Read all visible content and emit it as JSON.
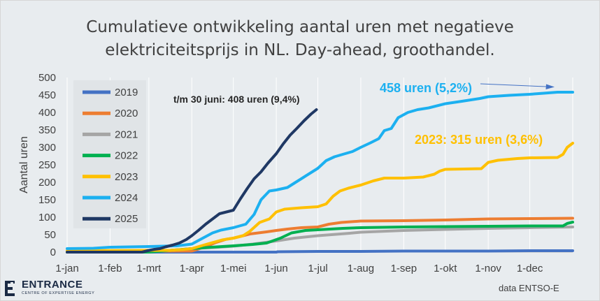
{
  "chart_data": {
    "type": "line",
    "title": "Cumulatieve ontwikkeling aantal uren met negatieve elektriciteitsprijs in NL. Day-ahead, groothandel.",
    "title_lines": [
      "Cumulatieve ontwikkeling aantal uren met negatieve",
      "elektriciteitsprijs in NL. Day-ahead, groothandel."
    ],
    "xlabel": "",
    "ylabel": "Aantal uren",
    "ylim": [
      0,
      500
    ],
    "yticks": [
      0,
      50,
      100,
      150,
      200,
      250,
      300,
      350,
      400,
      450,
      500
    ],
    "x_unit": "day of year",
    "xlim": [
      1,
      366
    ],
    "x_ticks": [
      {
        "label": "1-jan",
        "day": 1
      },
      {
        "label": "1-feb",
        "day": 32
      },
      {
        "label": "1-mrt",
        "day": 60
      },
      {
        "label": "1-apr",
        "day": 91
      },
      {
        "label": "1-mei",
        "day": 121
      },
      {
        "label": "1-jun",
        "day": 152
      },
      {
        "label": "1-jul",
        "day": 182
      },
      {
        "label": "1-aug",
        "day": 213
      },
      {
        "label": "1-sep",
        "day": 244
      },
      {
        "label": "1-okt",
        "day": 274
      },
      {
        "label": "1-nov",
        "day": 305
      },
      {
        "label": "1-dec",
        "day": 335
      }
    ],
    "grid": "vertical",
    "legend_position": "top-left",
    "series": [
      {
        "name": "2019",
        "color": "#4472c4",
        "points": [
          [
            1,
            0
          ],
          [
            152,
            0
          ],
          [
            153,
            1
          ],
          [
            182,
            2
          ],
          [
            213,
            2
          ],
          [
            244,
            3
          ],
          [
            305,
            3
          ],
          [
            335,
            4
          ],
          [
            366,
            4
          ]
        ]
      },
      {
        "name": "2020",
        "color": "#ed7d31",
        "points": [
          [
            1,
            2
          ],
          [
            91,
            3
          ],
          [
            100,
            14
          ],
          [
            108,
            27
          ],
          [
            116,
            37
          ],
          [
            121,
            40
          ],
          [
            133,
            52
          ],
          [
            145,
            58
          ],
          [
            152,
            62
          ],
          [
            160,
            66
          ],
          [
            170,
            70
          ],
          [
            182,
            72
          ],
          [
            190,
            80
          ],
          [
            199,
            85
          ],
          [
            213,
            89
          ],
          [
            244,
            90
          ],
          [
            274,
            92
          ],
          [
            305,
            95
          ],
          [
            335,
            96
          ],
          [
            366,
            97
          ]
        ]
      },
      {
        "name": "2021",
        "color": "#a5a5a5",
        "points": [
          [
            1,
            0
          ],
          [
            60,
            2
          ],
          [
            80,
            6
          ],
          [
            91,
            10
          ],
          [
            110,
            14
          ],
          [
            121,
            17
          ],
          [
            135,
            23
          ],
          [
            152,
            32
          ],
          [
            165,
            40
          ],
          [
            182,
            47
          ],
          [
            205,
            54
          ],
          [
            213,
            57
          ],
          [
            244,
            62
          ],
          [
            274,
            65
          ],
          [
            305,
            68
          ],
          [
            335,
            70
          ],
          [
            366,
            72
          ]
        ]
      },
      {
        "name": "2022",
        "color": "#00b050",
        "points": [
          [
            1,
            0
          ],
          [
            60,
            0
          ],
          [
            72,
            4
          ],
          [
            91,
            10
          ],
          [
            105,
            14
          ],
          [
            121,
            18
          ],
          [
            135,
            22
          ],
          [
            145,
            26
          ],
          [
            155,
            40
          ],
          [
            163,
            55
          ],
          [
            173,
            62
          ],
          [
            182,
            64
          ],
          [
            200,
            68
          ],
          [
            213,
            70
          ],
          [
            244,
            72
          ],
          [
            274,
            73
          ],
          [
            305,
            74
          ],
          [
            335,
            75
          ],
          [
            359,
            75
          ],
          [
            362,
            82
          ],
          [
            366,
            86
          ]
        ]
      },
      {
        "name": "2023",
        "color": "#ffc000",
        "points": [
          [
            1,
            4
          ],
          [
            60,
            5
          ],
          [
            75,
            5
          ],
          [
            86,
            8
          ],
          [
            91,
            10
          ],
          [
            103,
            24
          ],
          [
            113,
            35
          ],
          [
            121,
            40
          ],
          [
            128,
            47
          ],
          [
            133,
            60
          ],
          [
            140,
            85
          ],
          [
            147,
            95
          ],
          [
            152,
            115
          ],
          [
            158,
            123
          ],
          [
            170,
            127
          ],
          [
            182,
            130
          ],
          [
            188,
            138
          ],
          [
            193,
            160
          ],
          [
            198,
            175
          ],
          [
            204,
            183
          ],
          [
            213,
            192
          ],
          [
            222,
            204
          ],
          [
            226,
            208
          ],
          [
            230,
            212
          ],
          [
            244,
            212
          ],
          [
            258,
            215
          ],
          [
            266,
            223
          ],
          [
            270,
            232
          ],
          [
            274,
            237
          ],
          [
            300,
            239
          ],
          [
            305,
            257
          ],
          [
            312,
            263
          ],
          [
            326,
            268
          ],
          [
            335,
            270
          ],
          [
            355,
            271
          ],
          [
            359,
            280
          ],
          [
            362,
            300
          ],
          [
            366,
            312
          ]
        ]
      },
      {
        "name": "2024",
        "color": "#1cb0f0",
        "points": [
          [
            1,
            10
          ],
          [
            20,
            11
          ],
          [
            32,
            14
          ],
          [
            60,
            16
          ],
          [
            70,
            17
          ],
          [
            80,
            18
          ],
          [
            91,
            23
          ],
          [
            98,
            38
          ],
          [
            106,
            55
          ],
          [
            112,
            63
          ],
          [
            121,
            70
          ],
          [
            130,
            80
          ],
          [
            136,
            108
          ],
          [
            141,
            150
          ],
          [
            147,
            175
          ],
          [
            152,
            178
          ],
          [
            160,
            185
          ],
          [
            166,
            200
          ],
          [
            172,
            215
          ],
          [
            182,
            240
          ],
          [
            188,
            262
          ],
          [
            194,
            273
          ],
          [
            200,
            280
          ],
          [
            207,
            288
          ],
          [
            213,
            300
          ],
          [
            220,
            313
          ],
          [
            226,
            325
          ],
          [
            230,
            348
          ],
          [
            235,
            354
          ],
          [
            240,
            385
          ],
          [
            247,
            400
          ],
          [
            254,
            408
          ],
          [
            262,
            413
          ],
          [
            274,
            425
          ],
          [
            286,
            432
          ],
          [
            299,
            440
          ],
          [
            305,
            445
          ],
          [
            320,
            449
          ],
          [
            335,
            452
          ],
          [
            345,
            455
          ],
          [
            355,
            458
          ],
          [
            366,
            458
          ]
        ]
      },
      {
        "name": "2025",
        "color": "#1f3864",
        "points": [
          [
            1,
            0
          ],
          [
            55,
            0
          ],
          [
            60,
            5
          ],
          [
            64,
            8
          ],
          [
            68,
            10
          ],
          [
            72,
            15
          ],
          [
            77,
            20
          ],
          [
            82,
            26
          ],
          [
            87,
            36
          ],
          [
            91,
            47
          ],
          [
            96,
            63
          ],
          [
            101,
            80
          ],
          [
            106,
            95
          ],
          [
            111,
            110
          ],
          [
            116,
            115
          ],
          [
            121,
            120
          ],
          [
            126,
            152
          ],
          [
            131,
            182
          ],
          [
            136,
            210
          ],
          [
            141,
            230
          ],
          [
            146,
            255
          ],
          [
            152,
            282
          ],
          [
            157,
            310
          ],
          [
            162,
            335
          ],
          [
            167,
            355
          ],
          [
            172,
            376
          ],
          [
            177,
            395
          ],
          [
            181,
            408
          ]
        ]
      }
    ],
    "annotations": [
      {
        "text": "t/m 30 juni: 408 uren (9,4%)",
        "color": "#262626"
      },
      {
        "text": "458 uren (5,2%)",
        "color": "#1cb0f0"
      },
      {
        "text": "2023: 315 uren (3,6%)",
        "color": "#ffc000"
      }
    ]
  },
  "logo": {
    "name": "ENTRANCE",
    "subtitle": "CENTRE OF EXPERTISE ENERGY"
  },
  "source": "data ENTSO-E"
}
